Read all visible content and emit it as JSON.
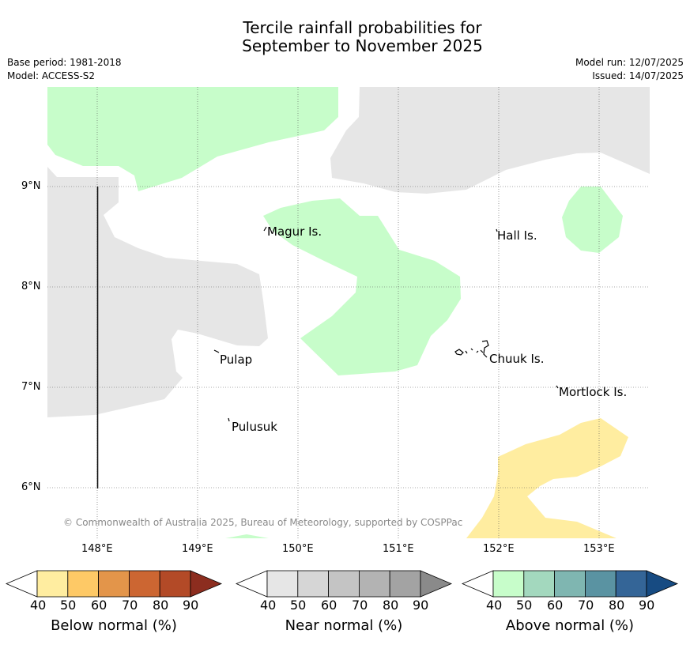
{
  "title_line1": "Tercile rainfall probabilities for",
  "title_line2": "September to November 2025",
  "meta": {
    "base_period": "Base period: 1981-2018",
    "model": "Model: ACCESS-S2",
    "model_run": "Model run: 12/07/2025",
    "issued": "Issued: 14/07/2025"
  },
  "x_ticks": [
    "148°E",
    "149°E",
    "150°E",
    "151°E",
    "152°E",
    "153°E"
  ],
  "y_ticks": [
    "9°N",
    "8°N",
    "7°N",
    "6°N"
  ],
  "places": {
    "magur": "Magur Is.",
    "hall": "Hall Is.",
    "pulap": "Pulap",
    "chuuk": "Chuuk Is.",
    "mortlock": "Mortlock Is.",
    "pulusuk": "Pulusuk"
  },
  "copyright": "© Commonwealth of Australia 2025, Bureau of Meteorology, supported by COSPPac",
  "colorbars": [
    {
      "label": "Below normal (%)",
      "ticks": [
        "40",
        "50",
        "60",
        "70",
        "80",
        "90"
      ],
      "colors": [
        "#ffeda0",
        "#fec966",
        "#e3954a",
        "#cc6632",
        "#b34a27",
        "#8c2d1f"
      ]
    },
    {
      "label": "Near normal (%)",
      "ticks": [
        "40",
        "50",
        "60",
        "70",
        "80",
        "90"
      ],
      "colors": [
        "#e6e6e6",
        "#d6d6d6",
        "#c4c4c4",
        "#b3b3b3",
        "#a3a3a3",
        "#8a8a8a"
      ]
    },
    {
      "label": "Above normal (%)",
      "ticks": [
        "40",
        "50",
        "60",
        "70",
        "80",
        "90"
      ],
      "colors": [
        "#c7fdca",
        "#a3d8be",
        "#7fb6b1",
        "#5a93a2",
        "#346597",
        "#174b82"
      ]
    }
  ],
  "colors": {
    "near_normal_region": "#e6e6e6",
    "above_normal_region": "#c7fdca",
    "below_normal_region": "#ffeda0"
  }
}
